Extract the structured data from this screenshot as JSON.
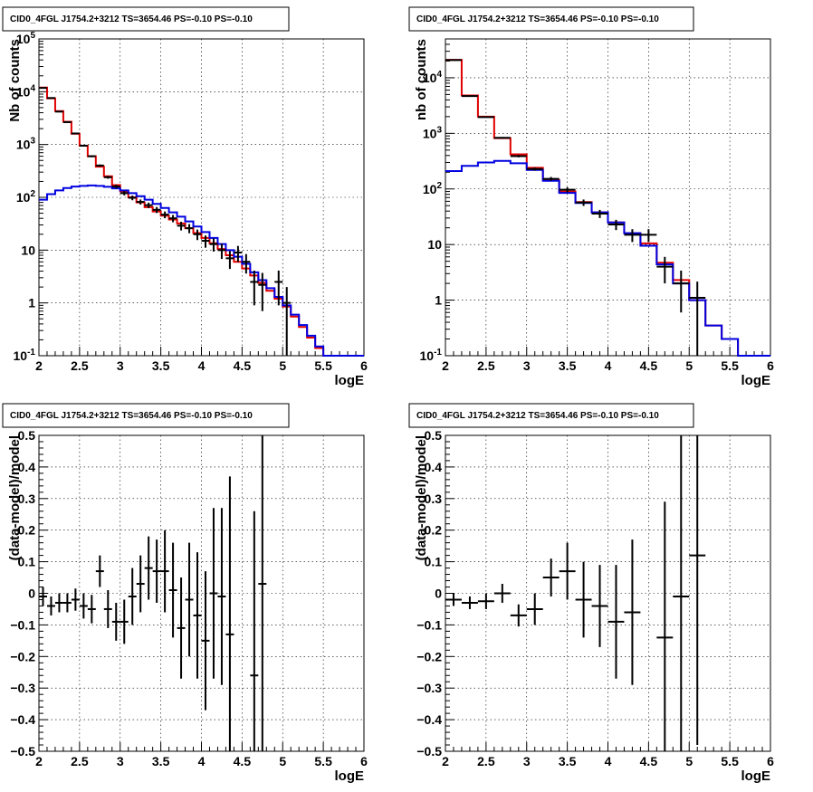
{
  "chart_data": [
    {
      "type": "step",
      "title": "CID0_4FGL J1754.2+3212 TS=3654.46 PS=-0.10 PS=-0.10",
      "xlabel": "logE",
      "ylabel": "Nb of counts",
      "xlim": [
        2,
        6
      ],
      "ylim": [
        0.1,
        100000
      ],
      "log_y": true,
      "grid": true,
      "x_ticks": [
        "2",
        "2.5",
        "3",
        "3.5",
        "4",
        "4.5",
        "5",
        "5.5",
        "6"
      ],
      "y_ticks": [
        "10-1",
        "1",
        "10",
        "102",
        "103",
        "104",
        "105"
      ],
      "bin_edges": [
        2.0,
        2.1,
        2.2,
        2.3,
        2.4,
        2.5,
        2.6,
        2.7,
        2.8,
        2.9,
        3.0,
        3.1,
        3.2,
        3.3,
        3.4,
        3.5,
        3.6,
        3.7,
        3.8,
        3.9,
        4.0,
        4.1,
        4.2,
        4.3,
        4.4,
        4.5,
        4.6,
        4.7,
        4.8,
        4.9,
        5.0,
        5.1,
        5.2,
        5.3,
        5.4,
        5.5,
        5.6,
        5.7,
        5.8,
        5.9,
        6.0
      ],
      "series": [
        {
          "color": "#e00000",
          "values": [
            12000,
            7500,
            4300,
            2700,
            1600,
            950,
            600,
            380,
            250,
            170,
            130,
            100,
            80,
            65,
            54,
            45,
            38,
            32,
            26,
            21,
            17,
            13.5,
            10.5,
            8.0,
            6.0,
            4.5,
            3.3,
            2.4,
            1.7,
            1.2,
            0.85,
            0.55,
            0.35,
            0.22,
            0.14,
            0.1,
            0.1,
            0.1,
            0.1,
            0.1
          ]
        },
        {
          "color": "#0000e0",
          "values": [
            90,
            115,
            135,
            150,
            160,
            165,
            168,
            165,
            158,
            148,
            135,
            120,
            105,
            90,
            75,
            63,
            52,
            43,
            35,
            28,
            22,
            17,
            13,
            10,
            7.5,
            5.5,
            3.8,
            2.7,
            1.9,
            1.3,
            0.9,
            0.6,
            0.38,
            0.24,
            0.15,
            0.1,
            0.1,
            0.1,
            0.1,
            0.1
          ]
        }
      ],
      "points": [
        {
          "x": 2.05,
          "y": 11800,
          "yerr": 110
        },
        {
          "x": 2.15,
          "y": 7600,
          "yerr": 90
        },
        {
          "x": 2.25,
          "y": 4200,
          "yerr": 65
        },
        {
          "x": 2.35,
          "y": 2650,
          "yerr": 52
        },
        {
          "x": 2.45,
          "y": 1620,
          "yerr": 40
        },
        {
          "x": 2.55,
          "y": 950,
          "yerr": 31
        },
        {
          "x": 2.65,
          "y": 600,
          "yerr": 25
        },
        {
          "x": 2.75,
          "y": 400,
          "yerr": 20
        },
        {
          "x": 2.85,
          "y": 240,
          "yerr": 15
        },
        {
          "x": 2.95,
          "y": 160,
          "yerr": 12.6
        },
        {
          "x": 3.05,
          "y": 120,
          "yerr": 11
        },
        {
          "x": 3.15,
          "y": 98,
          "yerr": 10
        },
        {
          "x": 3.25,
          "y": 82,
          "yerr": 9
        },
        {
          "x": 3.35,
          "y": 71,
          "yerr": 8.4
        },
        {
          "x": 3.45,
          "y": 58,
          "yerr": 7.6
        },
        {
          "x": 3.55,
          "y": 47,
          "yerr": 6.9
        },
        {
          "x": 3.65,
          "y": 40,
          "yerr": 6.3
        },
        {
          "x": 3.75,
          "y": 29,
          "yerr": 5.4
        },
        {
          "x": 3.85,
          "y": 26,
          "yerr": 5.1
        },
        {
          "x": 3.95,
          "y": 20,
          "yerr": 4.5
        },
        {
          "x": 4.05,
          "y": 15,
          "yerr": 3.9
        },
        {
          "x": 4.15,
          "y": 13,
          "yerr": 3.6
        },
        {
          "x": 4.25,
          "y": 10,
          "yerr": 3.2
        },
        {
          "x": 4.35,
          "y": 7,
          "yerr": 2.6
        },
        {
          "x": 4.45,
          "y": 9,
          "yerr": 3
        },
        {
          "x": 4.55,
          "y": 6,
          "yerr": 2.4
        },
        {
          "x": 4.65,
          "y": 2.5,
          "yerr": 1.6
        },
        {
          "x": 4.75,
          "y": 2.2,
          "yerr": 1.5
        },
        {
          "x": 4.95,
          "y": 2.5,
          "yerr": 1.6
        },
        {
          "x": 5.05,
          "y": 1,
          "yerr": 1
        }
      ]
    },
    {
      "type": "step",
      "title": "CID0_4FGL J1754.2+3212 TS=3654.46 PS=-0.10 PS=-0.10",
      "xlabel": "logE",
      "ylabel": "nb of counts",
      "xlim": [
        2,
        6
      ],
      "ylim": [
        0.1,
        50000
      ],
      "log_y": true,
      "grid": true,
      "x_ticks": [
        "2",
        "2.5",
        "3",
        "3.5",
        "4",
        "4.5",
        "5",
        "5.5",
        "6"
      ],
      "y_ticks": [
        "10-1",
        "1",
        "10",
        "102",
        "103",
        "104"
      ],
      "bin_edges": [
        2.0,
        2.2,
        2.4,
        2.6,
        2.8,
        3.0,
        3.2,
        3.4,
        3.6,
        3.8,
        4.0,
        4.2,
        4.4,
        4.6,
        4.8,
        5.0,
        5.2,
        5.4,
        5.6,
        5.8,
        6.0
      ],
      "series": [
        {
          "color": "#e00000",
          "values": [
            21000,
            4800,
            2000,
            820,
            420,
            240,
            145,
            90,
            58,
            38,
            25,
            16,
            10.5,
            4.7,
            2.3,
            1.0,
            0.35,
            0.2,
            0.1,
            0.1
          ]
        },
        {
          "color": "#0000e0",
          "values": [
            210,
            260,
            300,
            320,
            290,
            220,
            140,
            85,
            56,
            38,
            25,
            16,
            9.5,
            4.4,
            2.0,
            1.0,
            0.35,
            0.2,
            0.1,
            0.1
          ]
        }
      ],
      "points": [
        {
          "x": 2.1,
          "y": 20800,
          "yerr": 144
        },
        {
          "x": 2.3,
          "y": 4700,
          "yerr": 69
        },
        {
          "x": 2.5,
          "y": 1960,
          "yerr": 44
        },
        {
          "x": 2.7,
          "y": 830,
          "yerr": 29
        },
        {
          "x": 2.9,
          "y": 390,
          "yerr": 20
        },
        {
          "x": 3.1,
          "y": 228,
          "yerr": 15
        },
        {
          "x": 3.3,
          "y": 152,
          "yerr": 12
        },
        {
          "x": 3.5,
          "y": 97,
          "yerr": 10
        },
        {
          "x": 3.7,
          "y": 57,
          "yerr": 7.5
        },
        {
          "x": 3.9,
          "y": 36,
          "yerr": 6
        },
        {
          "x": 4.1,
          "y": 23,
          "yerr": 4.8
        },
        {
          "x": 4.3,
          "y": 15,
          "yerr": 3.9
        },
        {
          "x": 4.5,
          "y": 15,
          "yerr": 3.9
        },
        {
          "x": 4.7,
          "y": 4,
          "yerr": 2
        },
        {
          "x": 4.9,
          "y": 2,
          "yerr": 1.4
        },
        {
          "x": 5.1,
          "y": 1.1,
          "yerr": 1.05
        }
      ]
    },
    {
      "type": "scatter",
      "title": "CID0_4FGL J1754.2+3212 TS=3654.46 PS=-0.10 PS=-0.10",
      "xlabel": "logE",
      "ylabel": "(data-model)/model",
      "xlim": [
        2,
        6
      ],
      "ylim": [
        -0.5,
        0.5
      ],
      "grid": true,
      "x_ticks": [
        "2",
        "2.5",
        "3",
        "3.5",
        "4",
        "4.5",
        "5",
        "5.5",
        "6"
      ],
      "y_ticks": [
        "−0.5",
        "−0.4",
        "−0.3",
        "−0.2",
        "−0.1",
        "0",
        "0.1",
        "0.2",
        "0.3",
        "0.4",
        "0.5"
      ],
      "bin_width": 0.1,
      "points": [
        {
          "x": 2.05,
          "y": -0.01,
          "yerr": 0.03
        },
        {
          "x": 2.15,
          "y": -0.04,
          "yerr": 0.03
        },
        {
          "x": 2.25,
          "y": -0.03,
          "yerr": 0.03
        },
        {
          "x": 2.35,
          "y": -0.03,
          "yerr": 0.03
        },
        {
          "x": 2.45,
          "y": -0.02,
          "yerr": 0.035
        },
        {
          "x": 2.55,
          "y": -0.04,
          "yerr": 0.04
        },
        {
          "x": 2.65,
          "y": -0.05,
          "yerr": 0.045
        },
        {
          "x": 2.75,
          "y": 0.07,
          "yerr": 0.05
        },
        {
          "x": 2.85,
          "y": -0.05,
          "yerr": 0.06
        },
        {
          "x": 2.95,
          "y": -0.09,
          "yerr": 0.06
        },
        {
          "x": 3.05,
          "y": -0.09,
          "yerr": 0.07
        },
        {
          "x": 3.15,
          "y": -0.01,
          "yerr": 0.09
        },
        {
          "x": 3.25,
          "y": 0.03,
          "yerr": 0.09
        },
        {
          "x": 3.35,
          "y": 0.08,
          "yerr": 0.1
        },
        {
          "x": 3.45,
          "y": 0.07,
          "yerr": 0.1
        },
        {
          "x": 3.55,
          "y": 0.07,
          "yerr": 0.13
        },
        {
          "x": 3.65,
          "y": 0.01,
          "yerr": 0.15
        },
        {
          "x": 3.75,
          "y": -0.11,
          "yerr": 0.16
        },
        {
          "x": 3.85,
          "y": -0.02,
          "yerr": 0.18
        },
        {
          "x": 3.95,
          "y": -0.07,
          "yerr": 0.2
        },
        {
          "x": 4.05,
          "y": -0.15,
          "yerr": 0.22
        },
        {
          "x": 4.15,
          "y": 0.0,
          "yerr": 0.27
        },
        {
          "x": 4.25,
          "y": -0.01,
          "yerr": 0.28
        },
        {
          "x": 4.35,
          "y": -0.13,
          "yerr": 0.5
        },
        {
          "x": 4.65,
          "y": -0.26,
          "yerr": 0.52
        },
        {
          "x": 4.75,
          "y": 0.03,
          "yerr": 0.6
        }
      ]
    },
    {
      "type": "scatter",
      "title": "CID0_4FGL J1754.2+3212 TS=3654.46 PS=-0.10 PS=-0.10",
      "xlabel": "logE",
      "ylabel": "(data-model)/model",
      "xlim": [
        2,
        6
      ],
      "ylim": [
        -0.5,
        0.5
      ],
      "grid": true,
      "x_ticks": [
        "2",
        "2.5",
        "3",
        "3.5",
        "4",
        "4.5",
        "5",
        "5.5",
        "6"
      ],
      "y_ticks": [
        "−0.5",
        "−0.4",
        "−0.3",
        "−0.2",
        "−0.1",
        "0",
        "0.1",
        "0.2",
        "0.3",
        "0.4",
        "0.5"
      ],
      "bin_width": 0.2,
      "points": [
        {
          "x": 2.1,
          "y": -0.02,
          "yerr": 0.02
        },
        {
          "x": 2.3,
          "y": -0.03,
          "yerr": 0.02
        },
        {
          "x": 2.5,
          "y": -0.025,
          "yerr": 0.025
        },
        {
          "x": 2.7,
          "y": 0.0,
          "yerr": 0.03
        },
        {
          "x": 2.9,
          "y": -0.07,
          "yerr": 0.035
        },
        {
          "x": 3.1,
          "y": -0.05,
          "yerr": 0.05
        },
        {
          "x": 3.3,
          "y": 0.05,
          "yerr": 0.06
        },
        {
          "x": 3.5,
          "y": 0.07,
          "yerr": 0.09
        },
        {
          "x": 3.7,
          "y": -0.02,
          "yerr": 0.12
        },
        {
          "x": 3.9,
          "y": -0.04,
          "yerr": 0.13
        },
        {
          "x": 4.1,
          "y": -0.09,
          "yerr": 0.18
        },
        {
          "x": 4.3,
          "y": -0.06,
          "yerr": 0.23
        },
        {
          "x": 4.7,
          "y": -0.14,
          "yerr": 0.43
        },
        {
          "x": 4.9,
          "y": -0.01,
          "yerr": 0.6
        },
        {
          "x": 5.1,
          "y": 0.12,
          "yerr": 0.6
        }
      ]
    }
  ]
}
